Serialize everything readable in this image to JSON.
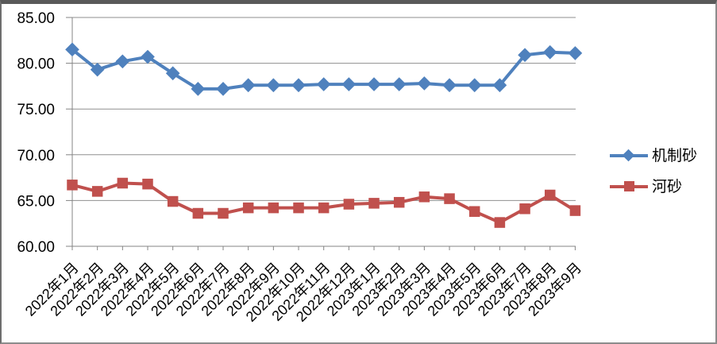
{
  "chart_data": {
    "type": "line",
    "title": "",
    "xlabel": "",
    "ylabel": "",
    "categories": [
      "2022年1月",
      "2022年2月",
      "2022年3月",
      "2022年4月",
      "2022年5月",
      "2022年6月",
      "2022年7月",
      "2022年8月",
      "2022年9月",
      "2022年10月",
      "2022年11月",
      "2022年12月",
      "2023年1月",
      "2023年2月",
      "2023年3月",
      "2023年4月",
      "2023年5月",
      "2023年6月",
      "2023年7月",
      "2023年8月",
      "2023年9月"
    ],
    "series": [
      {
        "name": "机制砂",
        "color": "#4F81BD",
        "marker": "diamond",
        "values": [
          81.5,
          79.3,
          80.2,
          80.7,
          78.9,
          77.2,
          77.2,
          77.6,
          77.6,
          77.6,
          77.7,
          77.7,
          77.7,
          77.7,
          77.8,
          77.6,
          77.6,
          77.6,
          80.9,
          81.2,
          81.1
        ]
      },
      {
        "name": "河砂",
        "color": "#C0504D",
        "marker": "square",
        "values": [
          66.7,
          66.0,
          66.9,
          66.8,
          64.9,
          63.6,
          63.6,
          64.2,
          64.2,
          64.2,
          64.2,
          64.6,
          64.7,
          64.8,
          65.4,
          65.2,
          63.8,
          62.6,
          64.1,
          65.6,
          63.9
        ]
      }
    ],
    "ylim": [
      60,
      85
    ],
    "ytick_interval": 5,
    "ytick_labels": [
      "60.00",
      "65.00",
      "70.00",
      "75.00",
      "80.00",
      "85.00"
    ],
    "grid": true,
    "legend_position": "right",
    "x_label_rotation": -45
  },
  "colors": {
    "axis": "#848484",
    "gridline": "#8f8f8f",
    "text": "#000000",
    "frame": "#808080",
    "background": "#ffffff"
  }
}
